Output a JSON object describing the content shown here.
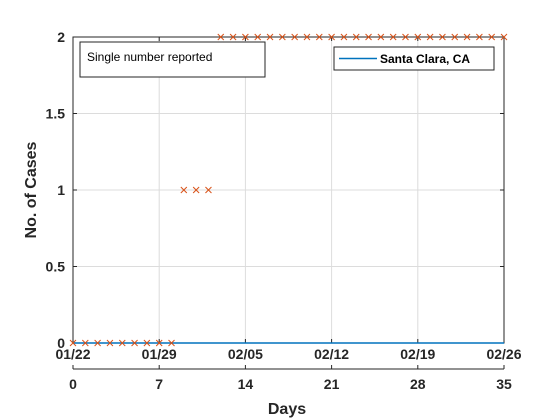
{
  "chart_data": {
    "type": "line",
    "xlim": [
      0,
      35
    ],
    "ylim": [
      0,
      2
    ],
    "x_ticks": [
      0,
      7,
      14,
      21,
      28,
      35
    ],
    "y_ticks": [
      0,
      0.5,
      1,
      1.5,
      2
    ],
    "y_tick_labels": [
      "0",
      "0.5",
      "1",
      "1.5",
      "2"
    ],
    "x_date_labels": [
      "01/22",
      "01/29",
      "02/05",
      "02/12",
      "02/19",
      "02/26"
    ],
    "xlabel": "Days",
    "ylabel": "No. of Cases",
    "grid": true,
    "legend_position": "top-right",
    "annotation": "Single number reported",
    "series": [
      {
        "name": "Santa Clara, CA",
        "style": "line",
        "color": "#0072BD",
        "x": [
          0,
          35
        ],
        "y": [
          0,
          0
        ]
      },
      {
        "style": "markers",
        "marker": "x",
        "color": "#D95319",
        "x": [
          0,
          1,
          2,
          3,
          4,
          5,
          6,
          7,
          8,
          9,
          10,
          11,
          12,
          13,
          14,
          15,
          16,
          17,
          18,
          19,
          20,
          21,
          22,
          23,
          24,
          25,
          26,
          27,
          28,
          29,
          30,
          31,
          32,
          33,
          34,
          35
        ],
        "y": [
          0,
          0,
          0,
          0,
          0,
          0,
          0,
          0,
          0,
          1,
          1,
          1,
          2,
          2,
          2,
          2,
          2,
          2,
          2,
          2,
          2,
          2,
          2,
          2,
          2,
          2,
          2,
          2,
          2,
          2,
          2,
          2,
          2,
          2,
          2,
          2
        ]
      }
    ]
  }
}
